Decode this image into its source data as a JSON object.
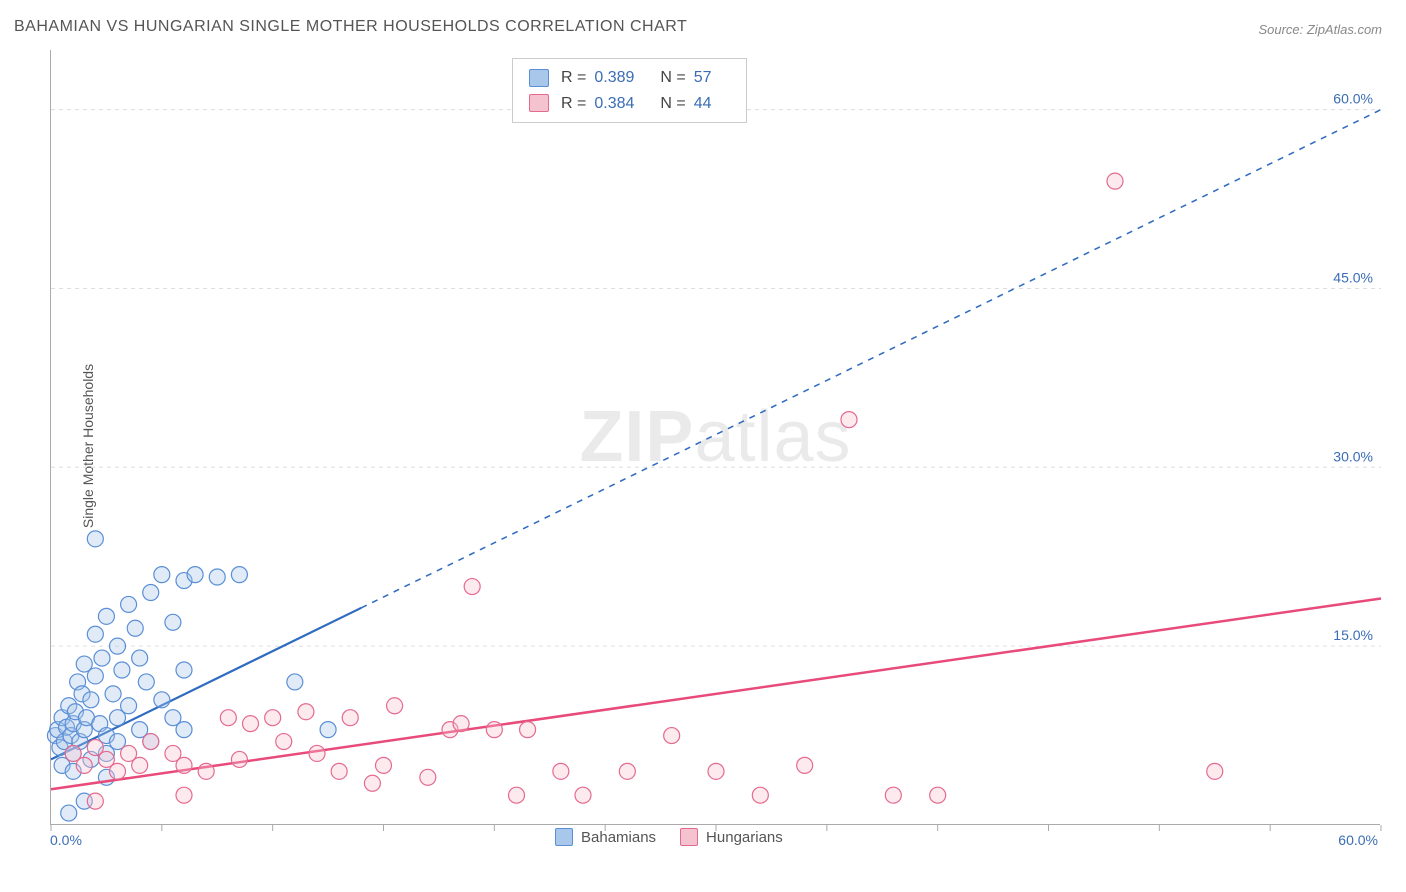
{
  "title": "BAHAMIAN VS HUNGARIAN SINGLE MOTHER HOUSEHOLDS CORRELATION CHART",
  "source": "Source: ZipAtlas.com",
  "y_axis_label": "Single Mother Households",
  "x_min_label": "0.0%",
  "x_max_label": "60.0%",
  "watermark_a": "ZIP",
  "watermark_b": "atlas",
  "chart": {
    "xlim": [
      0,
      60
    ],
    "ylim": [
      0,
      65
    ],
    "y_ticks": [
      15,
      30,
      45,
      60
    ],
    "y_tick_labels": [
      "15.0%",
      "30.0%",
      "45.0%",
      "60.0%"
    ],
    "x_tick_positions": [
      0,
      5,
      10,
      15,
      20,
      25,
      30,
      35,
      40,
      45,
      50,
      55,
      60
    ],
    "grid_color": "#dddddd",
    "axis_color": "#aaaaaa",
    "background": "#ffffff",
    "marker_radius": 8,
    "series": [
      {
        "name": "Bahamians",
        "fill": "#a9c7ea",
        "stroke": "#5a8fd6",
        "trend": {
          "x1": 0,
          "y1": 5.5,
          "x2": 60,
          "y2": 60,
          "solid_until_x": 14,
          "color": "#2f6bc0",
          "width": 2.2,
          "dash": "6 6"
        },
        "points": [
          [
            0.2,
            7.5
          ],
          [
            0.3,
            8.0
          ],
          [
            0.4,
            6.5
          ],
          [
            0.5,
            9.0
          ],
          [
            0.6,
            7.0
          ],
          [
            0.7,
            8.2
          ],
          [
            0.8,
            10.0
          ],
          [
            0.9,
            7.5
          ],
          [
            1.0,
            6.0
          ],
          [
            1.0,
            8.5
          ],
          [
            1.1,
            9.5
          ],
          [
            1.2,
            12.0
          ],
          [
            1.3,
            7.0
          ],
          [
            1.4,
            11.0
          ],
          [
            1.5,
            8.0
          ],
          [
            1.5,
            13.5
          ],
          [
            1.6,
            9.0
          ],
          [
            1.8,
            10.5
          ],
          [
            2.0,
            12.5
          ],
          [
            2.0,
            16.0
          ],
          [
            2.2,
            8.5
          ],
          [
            2.3,
            14.0
          ],
          [
            2.5,
            7.5
          ],
          [
            2.5,
            17.5
          ],
          [
            2.8,
            11.0
          ],
          [
            3.0,
            9.0
          ],
          [
            3.0,
            15.0
          ],
          [
            3.2,
            13.0
          ],
          [
            3.5,
            18.5
          ],
          [
            3.5,
            10.0
          ],
          [
            3.8,
            16.5
          ],
          [
            4.0,
            8.0
          ],
          [
            4.0,
            14.0
          ],
          [
            4.3,
            12.0
          ],
          [
            4.5,
            19.5
          ],
          [
            5.0,
            10.5
          ],
          [
            5.0,
            21.0
          ],
          [
            5.5,
            17.0
          ],
          [
            6.0,
            20.5
          ],
          [
            6.0,
            13.0
          ],
          [
            6.5,
            21.0
          ],
          [
            7.5,
            20.8
          ],
          [
            8.5,
            21.0
          ],
          [
            2.0,
            24.0
          ],
          [
            1.5,
            2.0
          ],
          [
            3.0,
            7.0
          ],
          [
            2.5,
            6.0
          ],
          [
            1.8,
            5.5
          ],
          [
            0.5,
            5.0
          ],
          [
            1.0,
            4.5
          ],
          [
            4.5,
            7.0
          ],
          [
            5.5,
            9.0
          ],
          [
            6.0,
            8.0
          ],
          [
            11.0,
            12.0
          ],
          [
            12.5,
            8.0
          ],
          [
            0.8,
            1.0
          ],
          [
            2.5,
            4.0
          ]
        ]
      },
      {
        "name": "Hungarians",
        "fill": "#f5c2d0",
        "stroke": "#e56a8f",
        "trend": {
          "x1": 0,
          "y1": 3.0,
          "x2": 60,
          "y2": 19.0,
          "solid_until_x": 60,
          "color": "#e84a7a",
          "width": 2.5,
          "dash": ""
        },
        "points": [
          [
            1.0,
            6.0
          ],
          [
            1.5,
            5.0
          ],
          [
            2.0,
            6.5
          ],
          [
            2.5,
            5.5
          ],
          [
            3.0,
            4.5
          ],
          [
            3.5,
            6.0
          ],
          [
            4.0,
            5.0
          ],
          [
            4.5,
            7.0
          ],
          [
            5.5,
            6.0
          ],
          [
            6.0,
            5.0
          ],
          [
            7.0,
            4.5
          ],
          [
            8.0,
            9.0
          ],
          [
            8.5,
            5.5
          ],
          [
            9.0,
            8.5
          ],
          [
            10.0,
            9.0
          ],
          [
            10.5,
            7.0
          ],
          [
            11.5,
            9.5
          ],
          [
            12.0,
            6.0
          ],
          [
            13.0,
            4.5
          ],
          [
            13.5,
            9.0
          ],
          [
            14.5,
            3.5
          ],
          [
            15.0,
            5.0
          ],
          [
            15.5,
            10.0
          ],
          [
            17.0,
            4.0
          ],
          [
            18.0,
            8.0
          ],
          [
            18.5,
            8.5
          ],
          [
            19.0,
            20.0
          ],
          [
            20.0,
            8.0
          ],
          [
            21.0,
            2.5
          ],
          [
            21.5,
            8.0
          ],
          [
            23.0,
            4.5
          ],
          [
            24.0,
            2.5
          ],
          [
            26.0,
            4.5
          ],
          [
            28.0,
            7.5
          ],
          [
            30.0,
            4.5
          ],
          [
            32.0,
            2.5
          ],
          [
            34.0,
            5.0
          ],
          [
            36.0,
            34.0
          ],
          [
            38.0,
            2.5
          ],
          [
            40.0,
            2.5
          ],
          [
            48.0,
            54.0
          ],
          [
            52.5,
            4.5
          ],
          [
            2.0,
            2.0
          ],
          [
            6.0,
            2.5
          ]
        ]
      }
    ]
  },
  "stats": [
    {
      "swatch_fill": "#a9c7ea",
      "swatch_stroke": "#5a8fd6",
      "r": "0.389",
      "n": "57"
    },
    {
      "swatch_fill": "#f5c2d0",
      "swatch_stroke": "#e56a8f",
      "r": "0.384",
      "n": "44"
    }
  ],
  "legend": [
    {
      "label": "Bahamians",
      "fill": "#a9c7ea",
      "stroke": "#5a8fd6"
    },
    {
      "label": "Hungarians",
      "fill": "#f5c2d0",
      "stroke": "#e56a8f"
    }
  ]
}
